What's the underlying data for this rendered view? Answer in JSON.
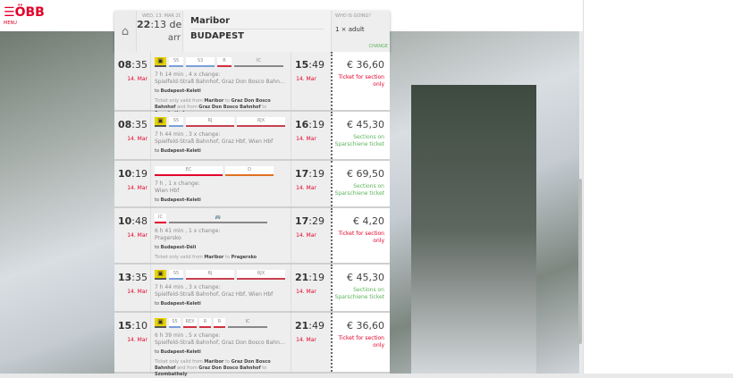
{
  "logo": {
    "text": "ÖBB",
    "menu": "MENU"
  },
  "header": {
    "date": "WED, 13. MAR 2019",
    "time_hour": "22",
    "time_min": ":13",
    "dep_label": "dep",
    "arr_label": "arr",
    "from": "Maribor",
    "to": "BUDAPEST",
    "who_label": "WHO IS GOING?",
    "who_value": "1 × adult",
    "change": "CHANGE"
  },
  "colors": {
    "accent": "#e2002a",
    "green": "#5bb45b",
    "bus": "#e6d200"
  },
  "connections": [
    {
      "dep_h": "08",
      "dep_m": ":35",
      "dep_date": "14. Mar",
      "arr_h": "15",
      "arr_m": ":49",
      "arr_date": "14. Mar",
      "segments": [
        {
          "type": "bus"
        },
        {
          "label": "S5",
          "color": "#7b9fd8",
          "w": 16
        },
        {
          "label": "S3",
          "color": "#7b9fd8",
          "w": 32
        },
        {
          "label": "R",
          "color": "#d03040",
          "w": 16
        },
        {
          "label": "IC",
          "color": "#888",
          "w": 55,
          "line": true
        }
      ],
      "duration": "7 h 14 min , 4 x change:",
      "via": "Spielfeld-Straß Bahnhof, Graz Don Bosco Bahnhof, Sze…",
      "to_prefix": "to ",
      "to": "Budapest-Keleti",
      "note": [
        "Ticket only valid from ",
        "Maribor",
        " to ",
        "Graz Don Bosco Bahnhof",
        " and from ",
        "Graz Don Bosco Bahnhof",
        " to ",
        "Szombathely"
      ],
      "price": "€ 36,60",
      "status": "Ticket for section only",
      "status_color": "#e2002a"
    },
    {
      "dep_h": "08",
      "dep_m": ":35",
      "dep_date": "14. Mar",
      "arr_h": "16",
      "arr_m": ":19",
      "arr_date": "14. Mar",
      "segments": [
        {
          "type": "bus"
        },
        {
          "label": "S5",
          "color": "#7b9fd8",
          "w": 16
        },
        {
          "label": "RJ",
          "color": "#c8404f",
          "w": 54
        },
        {
          "label": "RJX",
          "color": "#c8404f",
          "w": 54
        }
      ],
      "duration": "7 h 44 min , 3 x change:",
      "via": "Spielfeld-Straß Bahnhof, Graz Hbf, Wien Hbf",
      "to_prefix": "to ",
      "to": "Budapest-Keleti",
      "price": "€ 45,30",
      "status": "Sections on Sparschiene ticket",
      "status_color": "#5bb45b"
    },
    {
      "dep_h": "10",
      "dep_m": ":19",
      "dep_date": "14. Mar",
      "arr_h": "17",
      "arr_m": ":19",
      "arr_date": "14. Mar",
      "segments": [
        {
          "label": "EC",
          "color": "#e2002a",
          "w": 76
        },
        {
          "label": "D",
          "color": "#e07020",
          "w": 54
        }
      ],
      "duration": "7 h , 1 x change:",
      "via": "Wien Hbf",
      "to_prefix": "to ",
      "to": "Budapest-Keleti",
      "price": "€ 69,50",
      "status": "Sections on Sparschiene ticket",
      "status_color": "#5bb45b"
    },
    {
      "dep_h": "10",
      "dep_m": ":48",
      "dep_date": "14. Mar",
      "arr_h": "17",
      "arr_m": ":29",
      "arr_date": "14. Mar",
      "segments": [
        {
          "label": "IC",
          "color": "#e2002a",
          "w": 13
        },
        {
          "label": "🚌",
          "color": "#888",
          "w": 110,
          "line": true
        }
      ],
      "duration": "6 h 41 min , 1 x change:",
      "via": "Pragersko",
      "to_prefix": "to ",
      "to": "Budapest-Déli",
      "note": [
        "Ticket only valid from ",
        "Maribor",
        " to ",
        "Pragersko"
      ],
      "price": "€ 4,20",
      "status": "Ticket for section only",
      "status_color": "#e2002a"
    },
    {
      "dep_h": "13",
      "dep_m": ":35",
      "dep_date": "14. Mar",
      "arr_h": "21",
      "arr_m": ":19",
      "arr_date": "14. Mar",
      "segments": [
        {
          "type": "bus"
        },
        {
          "label": "S5",
          "color": "#7b9fd8",
          "w": 16
        },
        {
          "label": "RJ",
          "color": "#c8404f",
          "w": 54
        },
        {
          "label": "RJX",
          "color": "#c8404f",
          "w": 54
        }
      ],
      "duration": "7 h 44 min , 3 x change:",
      "via": "Spielfeld-Straß Bahnhof, Graz Hbf, Wien Hbf",
      "to_prefix": "to ",
      "to": "Budapest-Keleti",
      "price": "€ 45,30",
      "status": "Sections on Sparschiene ticket",
      "status_color": "#5bb45b"
    },
    {
      "dep_h": "15",
      "dep_m": ":10",
      "dep_date": "14. Mar",
      "arr_h": "21",
      "arr_m": ":49",
      "arr_date": "14. Mar",
      "segments": [
        {
          "type": "bus"
        },
        {
          "label": "S5",
          "color": "#7b9fd8",
          "w": 13
        },
        {
          "label": "REX",
          "color": "#d03040",
          "w": 15
        },
        {
          "label": "R",
          "color": "#d03040",
          "w": 13
        },
        {
          "label": "R",
          "color": "#d03040",
          "w": 13
        },
        {
          "label": "IC",
          "color": "#888",
          "w": 44,
          "line": true
        }
      ],
      "duration": "6 h 39 min , 5 x change:",
      "via": "Spielfeld-Straß Bahnhof, Graz Don Bosco Bahnhof, Feh…",
      "to_prefix": "to ",
      "to": "Budapest-Keleti",
      "note": [
        "Ticket only valid from ",
        "Maribor",
        " to ",
        "Graz Don Bosco Bahnhof",
        " and from ",
        "Graz Don Bosco Bahnhof",
        " to ",
        "Szombathely"
      ],
      "price": "€ 36,60",
      "status": "Ticket for section only",
      "status_color": "#e2002a"
    }
  ]
}
